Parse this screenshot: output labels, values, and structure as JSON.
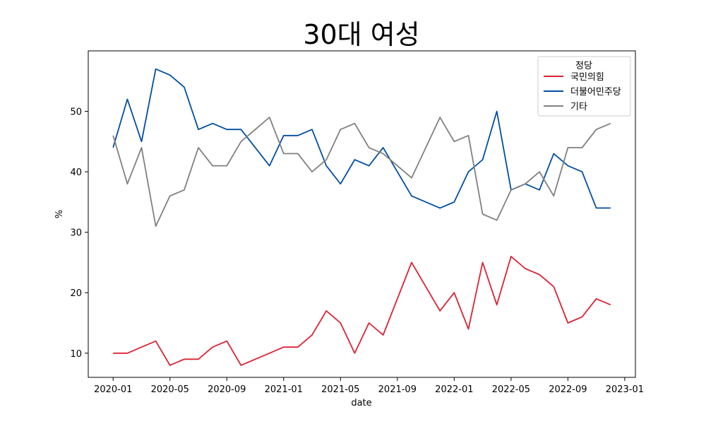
{
  "chart_data": {
    "type": "line",
    "title": "30대 여성",
    "xlabel": "date",
    "ylabel": "%",
    "x_ticks": [
      "2020-01",
      "2020-05",
      "2020-09",
      "2021-01",
      "2021-05",
      "2021-09",
      "2022-01",
      "2022-05",
      "2022-09",
      "2023-01"
    ],
    "y_ticks": [
      10,
      20,
      30,
      40,
      50
    ],
    "ylim": [
      6,
      60
    ],
    "grid": false,
    "legend": {
      "title": "정당",
      "placement": "top-right"
    },
    "x": [
      "2020-01",
      "2020-02",
      "2020-03",
      "2020-04",
      "2020-05",
      "2020-06",
      "2020-07",
      "2020-08",
      "2020-09",
      "2020-10",
      "2020-12",
      "2021-01",
      "2021-02",
      "2021-03",
      "2021-04",
      "2021-05",
      "2021-06",
      "2021-07",
      "2021-08",
      "2021-10",
      "2021-12",
      "2022-01",
      "2022-02",
      "2022-03",
      "2022-04",
      "2022-05",
      "2022-06",
      "2022-07",
      "2022-08",
      "2022-09",
      "2022-10",
      "2022-11",
      "2022-12"
    ],
    "series": [
      {
        "name": "국민의힘",
        "color": "#dc2233",
        "values": [
          10,
          10,
          11,
          12,
          8,
          9,
          9,
          11,
          12,
          8,
          10,
          11,
          11,
          13,
          17,
          15,
          10,
          15,
          13,
          25,
          17,
          20,
          14,
          25,
          18,
          26,
          24,
          23,
          21,
          15,
          16,
          19,
          18
        ]
      },
      {
        "name": "더불어민주당",
        "color": "#004ea2",
        "values": [
          44,
          52,
          45,
          57,
          56,
          54,
          47,
          48,
          47,
          47,
          41,
          46,
          46,
          47,
          41,
          38,
          42,
          41,
          44,
          36,
          34,
          35,
          40,
          42,
          50,
          37,
          38,
          37,
          43,
          41,
          40,
          34,
          34
        ]
      },
      {
        "name": "기타",
        "color": "#808080",
        "values": [
          46,
          38,
          44,
          31,
          36,
          37,
          44,
          41,
          41,
          45,
          49,
          43,
          43,
          40,
          42,
          47,
          48,
          44,
          43,
          39,
          49,
          45,
          46,
          33,
          32,
          37,
          38,
          40,
          36,
          44,
          44,
          47,
          48
        ]
      }
    ]
  }
}
